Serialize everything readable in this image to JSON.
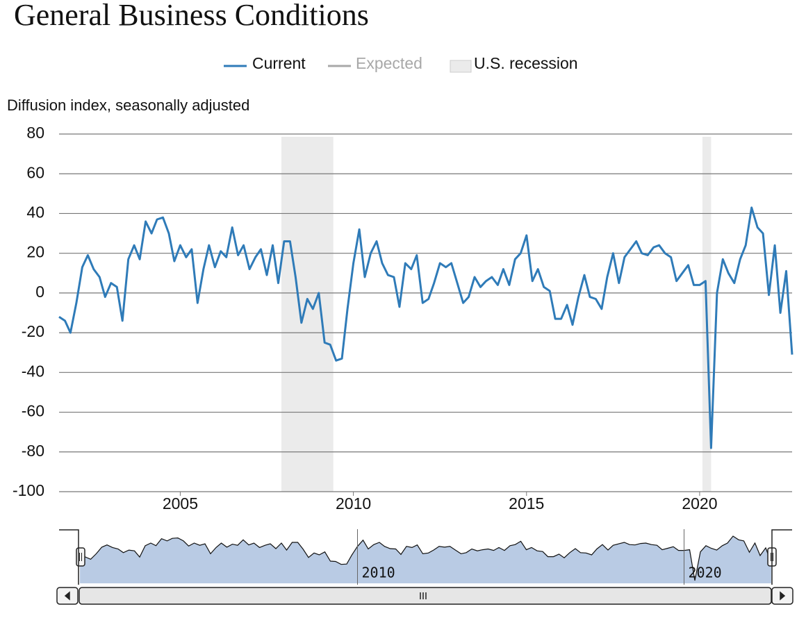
{
  "chart_data": {
    "type": "line",
    "title": "General Business Conditions",
    "y_axis_label": "Diffusion index, seasonally adjusted",
    "expected_label": "Expected",
    "recession_label": "U.S. recession",
    "recession_color": "#ebebeb",
    "recessions": [
      [
        2007.92,
        2009.42
      ],
      [
        2020.08,
        2020.33
      ]
    ],
    "xlim": [
      2001.5,
      2022.67
    ],
    "xticks": [
      2005,
      2010,
      2015,
      2020
    ],
    "navigator_xticks": [
      2010,
      2020
    ],
    "ylim": [
      -100,
      80
    ],
    "yticks": [
      -100,
      -80,
      -60,
      -40,
      -20,
      0,
      20,
      40,
      60,
      80
    ],
    "grid": true,
    "x": [
      2001.5,
      2001.67,
      2001.83,
      2002,
      2002.17,
      2002.33,
      2002.5,
      2002.67,
      2002.83,
      2003,
      2003.17,
      2003.33,
      2003.5,
      2003.67,
      2003.83,
      2004,
      2004.17,
      2004.33,
      2004.5,
      2004.67,
      2004.83,
      2005,
      2005.17,
      2005.33,
      2005.5,
      2005.67,
      2005.83,
      2006,
      2006.17,
      2006.33,
      2006.5,
      2006.67,
      2006.83,
      2007,
      2007.17,
      2007.33,
      2007.5,
      2007.67,
      2007.83,
      2008,
      2008.17,
      2008.33,
      2008.5,
      2008.67,
      2008.83,
      2009,
      2009.17,
      2009.33,
      2009.5,
      2009.67,
      2009.83,
      2010,
      2010.17,
      2010.33,
      2010.5,
      2010.67,
      2010.83,
      2011,
      2011.17,
      2011.33,
      2011.5,
      2011.67,
      2011.83,
      2012,
      2012.17,
      2012.33,
      2012.5,
      2012.67,
      2012.83,
      2013,
      2013.17,
      2013.33,
      2013.5,
      2013.67,
      2013.83,
      2014,
      2014.17,
      2014.33,
      2014.5,
      2014.67,
      2014.83,
      2015,
      2015.17,
      2015.33,
      2015.5,
      2015.67,
      2015.83,
      2016,
      2016.17,
      2016.33,
      2016.5,
      2016.67,
      2016.83,
      2017,
      2017.17,
      2017.33,
      2017.5,
      2017.67,
      2017.83,
      2018,
      2018.17,
      2018.33,
      2018.5,
      2018.67,
      2018.83,
      2019,
      2019.17,
      2019.33,
      2019.5,
      2019.67,
      2019.83,
      2020,
      2020.17,
      2020.33,
      2020.5,
      2020.67,
      2020.83,
      2021,
      2021.17,
      2021.33,
      2021.5,
      2021.67,
      2021.83,
      2022,
      2022.17,
      2022.33,
      2022.5,
      2022.67
    ],
    "series": [
      {
        "name": "Current",
        "color": "#2f7bb8",
        "values": [
          -12,
          -14,
          -20,
          -5,
          13,
          19,
          12,
          8,
          -2,
          5,
          3,
          -14,
          17,
          24,
          17,
          36,
          30,
          37,
          38,
          30,
          16,
          24,
          18,
          22,
          -5,
          12,
          24,
          13,
          21,
          18,
          33,
          19,
          24,
          12,
          18,
          22,
          9,
          24,
          5,
          26,
          26,
          8,
          -15,
          -3,
          -8,
          0,
          -25,
          -26,
          -34,
          -33,
          -8,
          15,
          32,
          8,
          20,
          26,
          15,
          9,
          8,
          -7,
          15,
          12,
          19,
          -5,
          -3,
          5,
          15,
          13,
          15,
          5,
          -5,
          -2,
          8,
          3,
          6,
          8,
          4,
          12,
          4,
          17,
          20,
          29,
          6,
          12,
          3,
          1,
          -13,
          -13,
          -6,
          -16,
          -2,
          9,
          -2,
          -3,
          -8,
          8,
          20,
          5,
          18,
          22,
          26,
          20,
          19,
          23,
          24,
          20,
          18,
          6,
          10,
          14,
          4,
          4,
          6,
          -78,
          0,
          17,
          10,
          5,
          17,
          24,
          43,
          33,
          30,
          -1,
          24,
          -10,
          11,
          -31
        ]
      }
    ]
  }
}
